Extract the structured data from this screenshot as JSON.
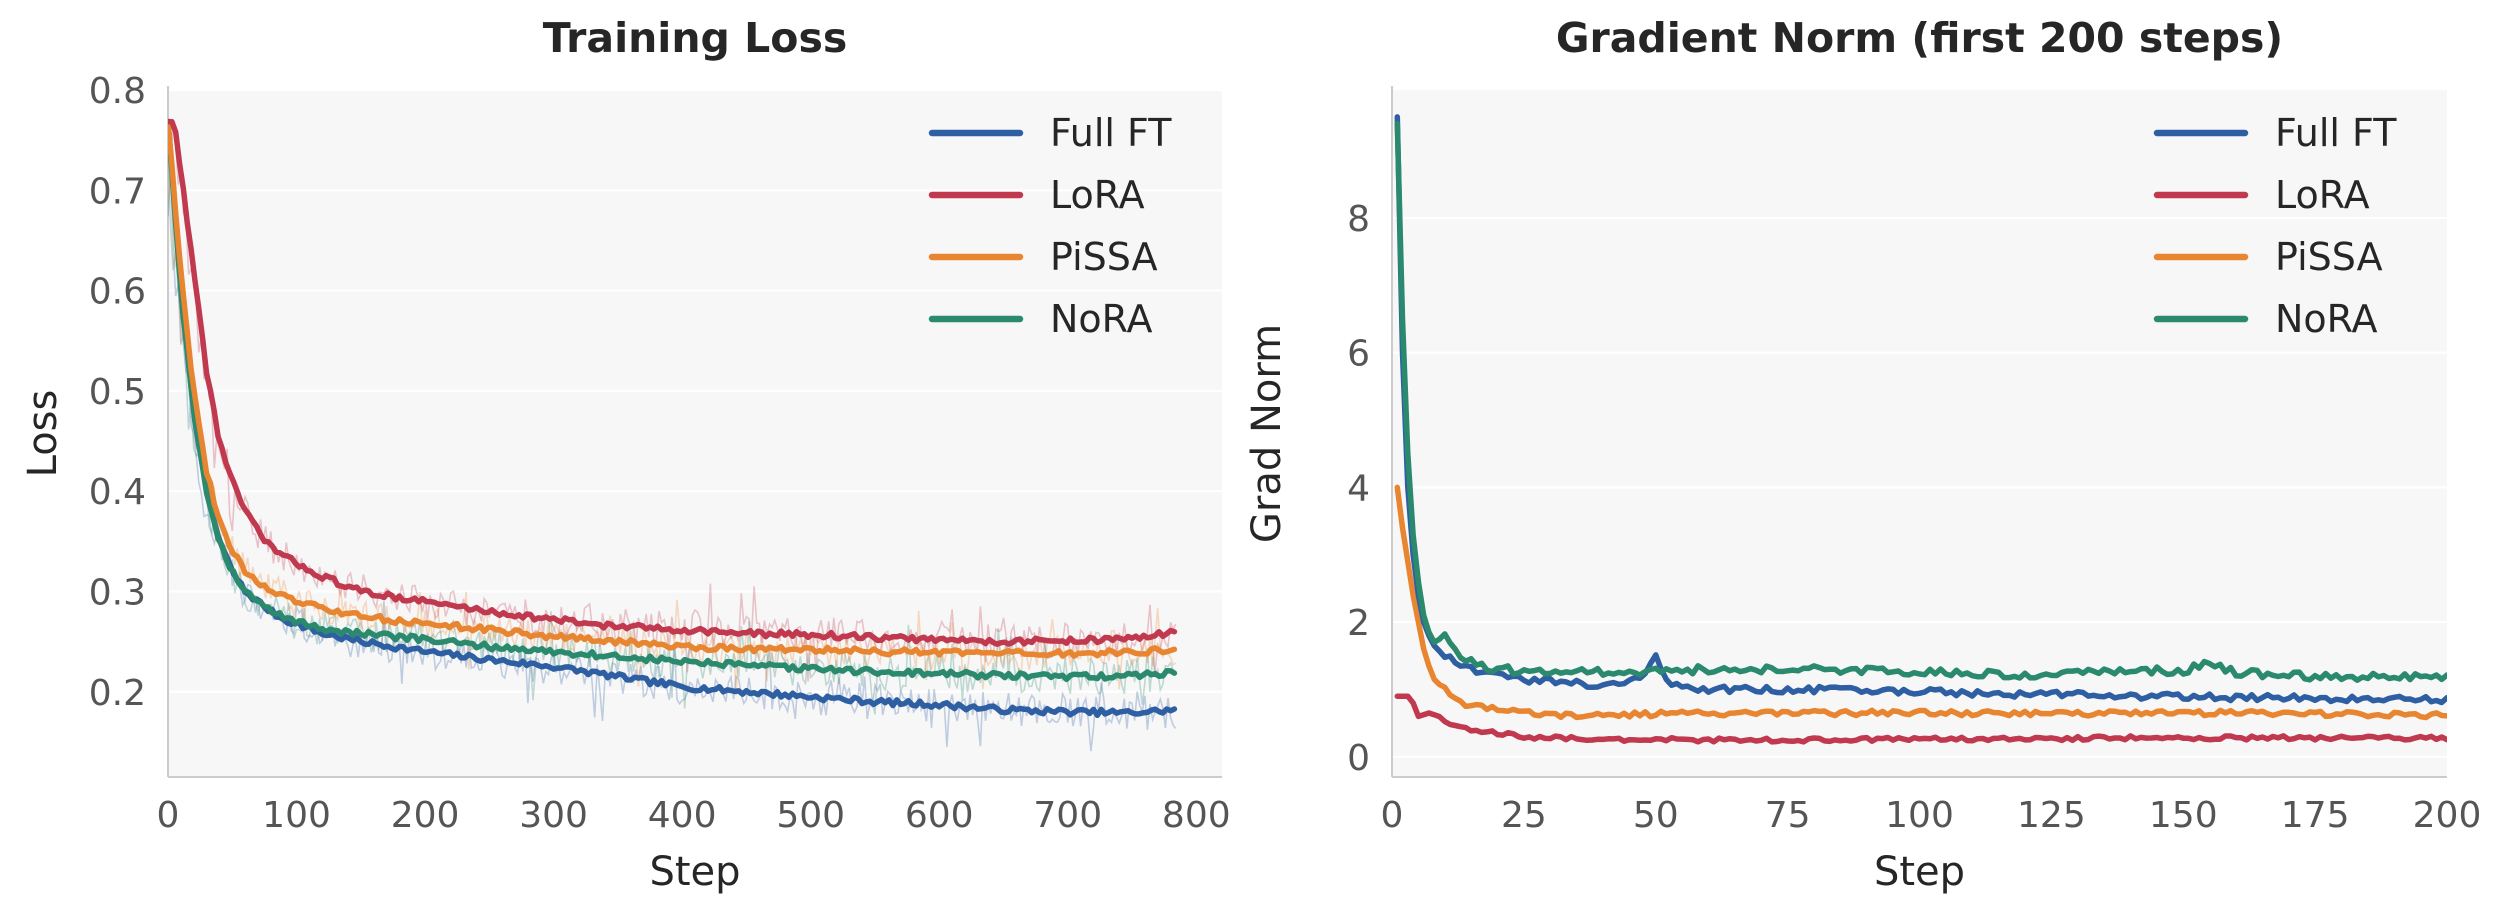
{
  "chart_data": [
    {
      "type": "line",
      "title": "Training Loss",
      "xlabel": "Step",
      "ylabel": "Loss",
      "xlim": [
        0,
        820
      ],
      "ylim": [
        0.115,
        0.8
      ],
      "xticks": [
        0,
        100,
        200,
        300,
        400,
        500,
        600,
        700,
        800
      ],
      "yticks": [
        0.2,
        0.3,
        0.4,
        0.5,
        0.6,
        0.7,
        0.8
      ],
      "grid": true,
      "legend": "top-right",
      "raw_noise_shown": true,
      "series": [
        {
          "name": "Full FT",
          "color": "#2f5fa3",
          "raw_noise": 0.018,
          "x": [
            0,
            10,
            20,
            30,
            40,
            50,
            60,
            70,
            80,
            90,
            100,
            120,
            150,
            200,
            250,
            300,
            350,
            400,
            450,
            500,
            550,
            600,
            650,
            700,
            750,
            785
          ],
          "y": [
            0.77,
            0.6,
            0.48,
            0.4,
            0.35,
            0.32,
            0.3,
            0.29,
            0.28,
            0.272,
            0.268,
            0.258,
            0.25,
            0.24,
            0.232,
            0.225,
            0.215,
            0.205,
            0.2,
            0.195,
            0.19,
            0.187,
            0.182,
            0.18,
            0.179,
            0.182
          ]
        },
        {
          "name": "LoRA",
          "color": "#c0394f",
          "raw_noise": 0.018,
          "x": [
            0,
            5,
            10,
            20,
            30,
            40,
            50,
            60,
            70,
            80,
            90,
            100,
            120,
            150,
            200,
            250,
            300,
            350,
            400,
            450,
            500,
            550,
            600,
            650,
            700,
            750,
            785
          ],
          "y": [
            0.77,
            0.765,
            0.72,
            0.62,
            0.52,
            0.45,
            0.41,
            0.38,
            0.36,
            0.345,
            0.335,
            0.328,
            0.315,
            0.3,
            0.29,
            0.28,
            0.272,
            0.265,
            0.262,
            0.258,
            0.257,
            0.254,
            0.252,
            0.25,
            0.251,
            0.253,
            0.26
          ]
        },
        {
          "name": "PiSSA",
          "color": "#e88530",
          "raw_noise": 0.018,
          "x": [
            0,
            10,
            20,
            30,
            40,
            50,
            60,
            70,
            80,
            90,
            100,
            120,
            150,
            200,
            250,
            300,
            350,
            400,
            450,
            500,
            550,
            600,
            650,
            700,
            750,
            785
          ],
          "y": [
            0.77,
            0.62,
            0.5,
            0.42,
            0.37,
            0.34,
            0.32,
            0.31,
            0.3,
            0.295,
            0.29,
            0.283,
            0.275,
            0.268,
            0.262,
            0.255,
            0.25,
            0.245,
            0.243,
            0.242,
            0.24,
            0.239,
            0.238,
            0.238,
            0.239,
            0.243
          ]
        },
        {
          "name": "NoRA",
          "color": "#2b8a6e",
          "raw_noise": 0.018,
          "x": [
            0,
            10,
            20,
            30,
            40,
            50,
            60,
            70,
            80,
            90,
            100,
            120,
            150,
            200,
            250,
            300,
            350,
            400,
            450,
            500,
            550,
            600,
            650,
            700,
            750,
            785
          ],
          "y": [
            0.77,
            0.6,
            0.48,
            0.4,
            0.35,
            0.32,
            0.3,
            0.29,
            0.28,
            0.275,
            0.27,
            0.263,
            0.258,
            0.252,
            0.245,
            0.24,
            0.235,
            0.23,
            0.226,
            0.223,
            0.22,
            0.218,
            0.216,
            0.215,
            0.216,
            0.22
          ]
        }
      ]
    },
    {
      "type": "line",
      "title": "Gradient Norm (first 200 steps)",
      "xlabel": "Step",
      "ylabel": "Grad Norm",
      "xlim": [
        0,
        200
      ],
      "ylim": [
        -0.3,
        9.9
      ],
      "xticks": [
        0,
        25,
        50,
        75,
        100,
        125,
        150,
        175,
        200
      ],
      "yticks": [
        0,
        2,
        4,
        6,
        8
      ],
      "grid": true,
      "legend": "top-right",
      "raw_noise_shown": false,
      "series": [
        {
          "name": "Full FT",
          "color": "#2f5fa3",
          "noise": 0.05,
          "x": [
            1,
            2,
            3,
            4,
            5,
            6,
            7,
            8,
            10,
            12,
            15,
            20,
            25,
            30,
            35,
            40,
            45,
            48,
            50,
            52,
            55,
            60,
            70,
            80,
            90,
            100,
            110,
            120,
            130,
            140,
            150,
            160,
            170,
            180,
            190,
            200
          ],
          "y": [
            9.5,
            6.0,
            4.0,
            3.0,
            2.4,
            2.0,
            1.8,
            1.65,
            1.5,
            1.4,
            1.3,
            1.2,
            1.15,
            1.12,
            1.1,
            1.05,
            1.1,
            1.2,
            1.55,
            1.1,
            1.05,
            1.0,
            1.0,
            1.0,
            0.98,
            0.97,
            0.95,
            0.93,
            0.92,
            0.9,
            0.9,
            0.88,
            0.87,
            0.86,
            0.85,
            0.85
          ]
        },
        {
          "name": "LoRA",
          "color": "#c0394f",
          "noise": 0.03,
          "x": [
            1,
            3,
            4,
            5,
            7,
            9,
            11,
            13,
            15,
            20,
            25,
            30,
            40,
            60,
            80,
            100,
            120,
            140,
            160,
            180,
            200
          ],
          "y": [
            0.9,
            0.9,
            0.8,
            0.6,
            0.65,
            0.6,
            0.5,
            0.42,
            0.4,
            0.35,
            0.3,
            0.28,
            0.26,
            0.25,
            0.25,
            0.26,
            0.27,
            0.28,
            0.28,
            0.28,
            0.28
          ]
        },
        {
          "name": "PiSSA",
          "color": "#e88530",
          "noise": 0.04,
          "x": [
            1,
            2,
            3,
            4,
            5,
            6,
            7,
            8,
            10,
            12,
            15,
            20,
            25,
            30,
            40,
            60,
            80,
            100,
            120,
            140,
            160,
            180,
            200
          ],
          "y": [
            4.0,
            3.4,
            2.9,
            2.4,
            2.0,
            1.6,
            1.35,
            1.15,
            1.0,
            0.85,
            0.75,
            0.7,
            0.65,
            0.62,
            0.63,
            0.64,
            0.65,
            0.65,
            0.64,
            0.65,
            0.65,
            0.63,
            0.62
          ]
        },
        {
          "name": "NoRA",
          "color": "#2b8a6e",
          "noise": 0.06,
          "x": [
            1,
            2,
            3,
            4,
            5,
            6,
            7,
            8,
            10,
            12,
            15,
            20,
            25,
            30,
            40,
            50,
            60,
            70,
            80,
            90,
            100,
            110,
            120,
            130,
            140,
            150,
            155,
            160,
            170,
            180,
            190,
            200
          ],
          "y": [
            9.4,
            6.5,
            4.5,
            3.3,
            2.6,
            2.1,
            1.85,
            1.7,
            1.8,
            1.55,
            1.4,
            1.3,
            1.28,
            1.27,
            1.26,
            1.27,
            1.3,
            1.3,
            1.3,
            1.28,
            1.25,
            1.25,
            1.22,
            1.25,
            1.28,
            1.27,
            1.4,
            1.25,
            1.2,
            1.2,
            1.18,
            1.2
          ]
        }
      ]
    }
  ]
}
